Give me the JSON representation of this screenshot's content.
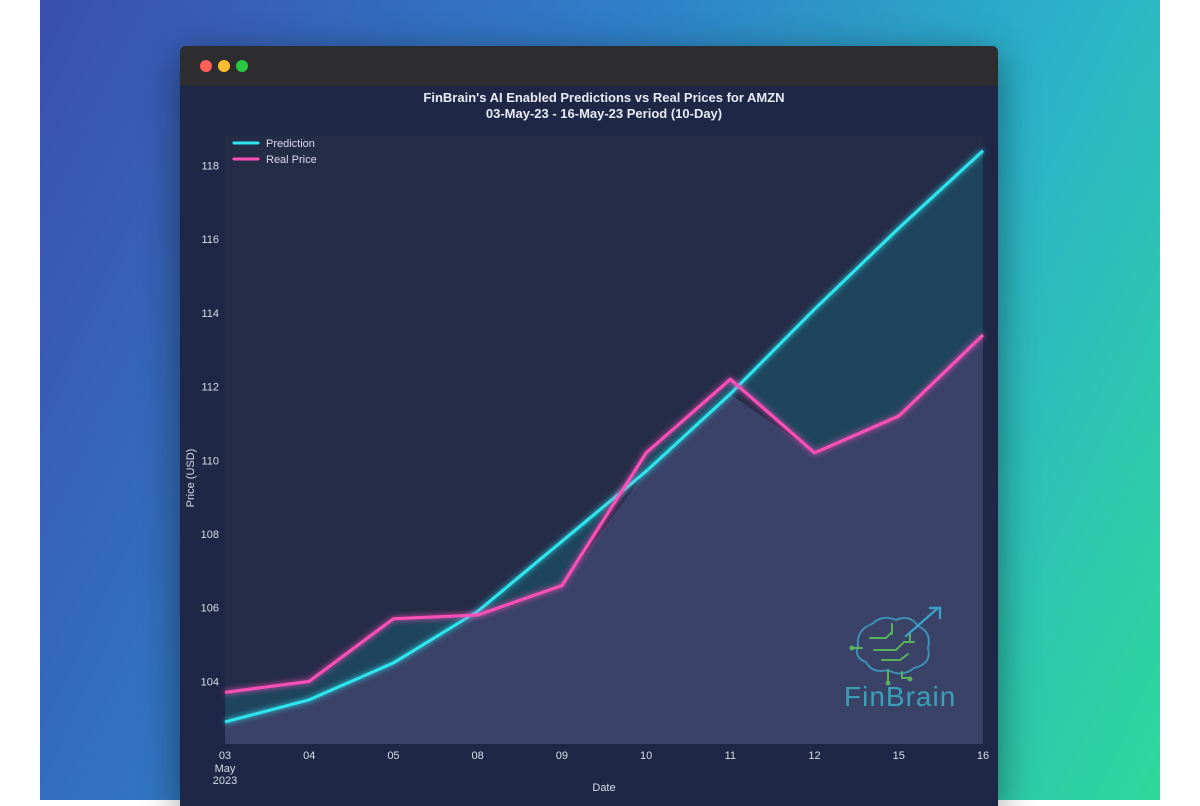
{
  "window": {
    "controls": [
      "close",
      "minimize",
      "zoom"
    ]
  },
  "colors": {
    "prediction": "#2ee6ef",
    "real_price": "#ff4fb8",
    "plot_background": "#252c48",
    "area_fill": "#3a4268",
    "gap_fill": "#1e4a63",
    "logo": "#3aa0b8"
  },
  "logo": {
    "text": "FinBrain",
    "icon": "brain-circuit-icon"
  },
  "chart_data": {
    "type": "line",
    "title": "FinBrain's AI Enabled Predictions vs Real Prices for AMZN",
    "subtitle": "03-May-23 - 16-May-23 Period (10-Day)",
    "xlabel": "Date",
    "ylabel": "Price (USD)",
    "categories": [
      "03",
      "04",
      "05",
      "08",
      "09",
      "10",
      "11",
      "12",
      "15",
      "16"
    ],
    "x_sublabel": [
      "May",
      "2023"
    ],
    "ylim": [
      102.3,
      118.8
    ],
    "yticks": [
      104,
      106,
      108,
      110,
      112,
      114,
      116,
      118
    ],
    "grid": false,
    "legend_position": "top-left",
    "series": [
      {
        "name": "Prediction",
        "color": "#2ee6ef",
        "values": [
          102.9,
          103.5,
          104.5,
          105.9,
          107.8,
          109.7,
          111.8,
          114.1,
          116.3,
          118.4
        ]
      },
      {
        "name": "Real Price",
        "color": "#ff4fb8",
        "values": [
          103.7,
          104.0,
          105.7,
          105.8,
          106.6,
          110.2,
          112.2,
          110.2,
          111.2,
          113.4
        ]
      }
    ]
  }
}
